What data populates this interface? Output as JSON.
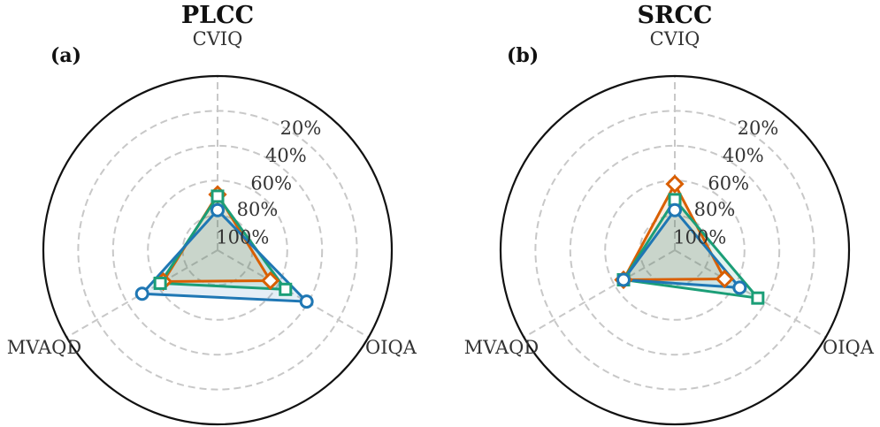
{
  "chart_data": [
    {
      "type": "radar",
      "title": "PLCC",
      "panel_label": "(a)",
      "axes": [
        "CVIQ",
        "OIQA",
        "MVAQD"
      ],
      "ring_labels": [
        "20%",
        "40%",
        "60%",
        "80%",
        "100%"
      ],
      "series": [
        {
          "name": "series-blue",
          "color": "#1f77b4",
          "marker": "circle",
          "values": [
            0.23,
            0.59,
            0.5
          ]
        },
        {
          "name": "series-orange",
          "color": "#d95f02",
          "marker": "diamond",
          "values": [
            0.32,
            0.35,
            0.36
          ]
        },
        {
          "name": "series-green",
          "color": "#1b9e77",
          "marker": "square",
          "values": [
            0.31,
            0.45,
            0.38
          ]
        }
      ]
    },
    {
      "type": "radar",
      "title": "SRCC",
      "panel_label": "(b)",
      "axes": [
        "CVIQ",
        "OIQA",
        "MVAQD"
      ],
      "ring_labels": [
        "20%",
        "40%",
        "60%",
        "80%",
        "100%"
      ],
      "series": [
        {
          "name": "series-blue",
          "color": "#1f77b4",
          "marker": "circle",
          "values": [
            0.23,
            0.43,
            0.34
          ]
        },
        {
          "name": "series-orange",
          "color": "#d95f02",
          "marker": "diamond",
          "values": [
            0.38,
            0.33,
            0.34
          ]
        },
        {
          "name": "series-green",
          "color": "#1b9e77",
          "marker": "square",
          "values": [
            0.29,
            0.55,
            0.34
          ]
        }
      ]
    }
  ]
}
